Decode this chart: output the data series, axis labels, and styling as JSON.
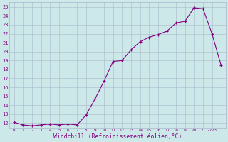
{
  "x": [
    0,
    1,
    2,
    3,
    4,
    5,
    6,
    7,
    8,
    9,
    10,
    11,
    12,
    13,
    14,
    15,
    16,
    17,
    18,
    19,
    20,
    21,
    22,
    23
  ],
  "y": [
    12.1,
    11.8,
    11.7,
    11.8,
    11.9,
    11.8,
    11.9,
    11.8,
    12.9,
    14.7,
    16.7,
    18.9,
    19.0,
    20.2,
    21.1,
    21.6,
    21.9,
    22.3,
    23.2,
    23.4,
    24.9,
    24.8,
    22.0,
    18.5
  ],
  "x_tick_labels": [
    "0",
    "1",
    "2",
    "3",
    "4",
    "5",
    "6",
    "7",
    "8",
    "9",
    "10",
    "11",
    "12",
    "13",
    "14",
    "15",
    "16",
    "17",
    "18",
    "19",
    "20",
    "21",
    "2223"
  ],
  "x_tick_positions": [
    0,
    1,
    2,
    3,
    4,
    5,
    6,
    7,
    8,
    9,
    10,
    11,
    12,
    13,
    14,
    15,
    16,
    17,
    18,
    19,
    20,
    21,
    22
  ],
  "y_ticks": [
    12,
    13,
    14,
    15,
    16,
    17,
    18,
    19,
    20,
    21,
    22,
    23,
    24,
    25
  ],
  "ylim": [
    11.5,
    25.5
  ],
  "xlim": [
    -0.5,
    23.5
  ],
  "xlabel": "Windchill (Refroidissement éolien,°C)",
  "line_color": "#800080",
  "bg_color": "#cce8e8",
  "grid_color": "#aab8cc",
  "tick_color": "#800080",
  "xlabel_color": "#800080"
}
